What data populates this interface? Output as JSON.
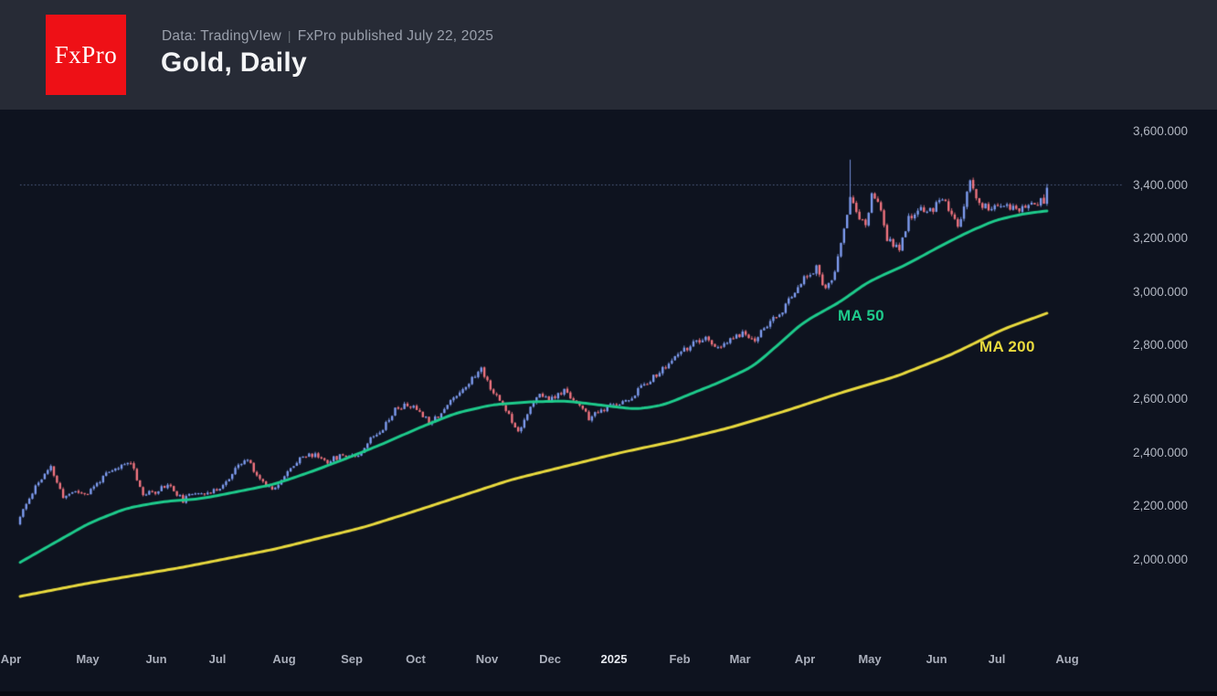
{
  "header": {
    "logo_text": "FxPro",
    "meta_source": "Data: TradingVIew",
    "meta_separator": "|",
    "meta_published": "FxPro published July 22, 2025",
    "title": "Gold, Daily"
  },
  "chart_data": {
    "type": "candlestick",
    "instrument": "Gold",
    "timeframe": "Daily",
    "background": "#0e131f",
    "grid": "off",
    "legend_position": "none",
    "y_axis": {
      "side": "right",
      "range": [
        1900,
        3680
      ],
      "ticks": [
        {
          "label": "3,600.000",
          "value": 3600
        },
        {
          "label": "3,400.000",
          "value": 3400
        },
        {
          "label": "3,200.000",
          "value": 3200
        },
        {
          "label": "3,000.000",
          "value": 3000
        },
        {
          "label": "2,800.000",
          "value": 2800
        },
        {
          "label": "2,600.000",
          "value": 2600
        },
        {
          "label": "2,400.000",
          "value": 2400
        },
        {
          "label": "2,200.000",
          "value": 2200
        },
        {
          "label": "2,000.000",
          "value": 2000
        }
      ]
    },
    "x_axis": {
      "ticks": [
        {
          "label": "Apr",
          "emphasis": false
        },
        {
          "label": "May",
          "emphasis": false
        },
        {
          "label": "Jun",
          "emphasis": false
        },
        {
          "label": "Jul",
          "emphasis": false
        },
        {
          "label": "Aug",
          "emphasis": false
        },
        {
          "label": "Sep",
          "emphasis": false
        },
        {
          "label": "Oct",
          "emphasis": false
        },
        {
          "label": "Nov",
          "emphasis": false
        },
        {
          "label": "Dec",
          "emphasis": false
        },
        {
          "label": "2025",
          "emphasis": true
        },
        {
          "label": "Feb",
          "emphasis": false
        },
        {
          "label": "Mar",
          "emphasis": false
        },
        {
          "label": "Apr",
          "emphasis": false
        },
        {
          "label": "May",
          "emphasis": false
        },
        {
          "label": "Jun",
          "emphasis": false
        },
        {
          "label": "Jul",
          "emphasis": false
        },
        {
          "label": "Aug",
          "emphasis": false
        }
      ]
    },
    "level_line": {
      "value": 3402,
      "style": "dotted",
      "color": "#55648a"
    },
    "candle_colors": {
      "up": "#7e9cf0",
      "down": "#f1747f"
    },
    "series": {
      "price_path": {
        "name": "Gold daily close path (day-index, price)",
        "points": [
          [
            0,
            2160
          ],
          [
            5,
            2276
          ],
          [
            10,
            2344
          ],
          [
            14,
            2232
          ],
          [
            17,
            2255
          ],
          [
            22,
            2248
          ],
          [
            27,
            2310
          ],
          [
            32,
            2344
          ],
          [
            36,
            2368
          ],
          [
            40,
            2242
          ],
          [
            44,
            2255
          ],
          [
            48,
            2283
          ],
          [
            53,
            2221
          ],
          [
            57,
            2255
          ],
          [
            62,
            2248
          ],
          [
            67,
            2289
          ],
          [
            71,
            2351
          ],
          [
            74,
            2375
          ],
          [
            78,
            2300
          ],
          [
            82,
            2266
          ],
          [
            86,
            2310
          ],
          [
            91,
            2385
          ],
          [
            96,
            2392
          ],
          [
            100,
            2368
          ],
          [
            105,
            2392
          ],
          [
            110,
            2392
          ],
          [
            114,
            2453
          ],
          [
            118,
            2494
          ],
          [
            122,
            2562
          ],
          [
            126,
            2579
          ],
          [
            130,
            2556
          ],
          [
            133,
            2515
          ],
          [
            137,
            2549
          ],
          [
            141,
            2607
          ],
          [
            145,
            2651
          ],
          [
            150,
            2713
          ],
          [
            154,
            2624
          ],
          [
            158,
            2562
          ],
          [
            162,
            2480
          ],
          [
            165,
            2549
          ],
          [
            169,
            2617
          ],
          [
            173,
            2600
          ],
          [
            177,
            2630
          ],
          [
            181,
            2590
          ],
          [
            185,
            2528
          ],
          [
            189,
            2556
          ],
          [
            193,
            2580
          ],
          [
            198,
            2597
          ],
          [
            203,
            2658
          ],
          [
            208,
            2699
          ],
          [
            213,
            2754
          ],
          [
            218,
            2802
          ],
          [
            223,
            2822
          ],
          [
            228,
            2788
          ],
          [
            231,
            2822
          ],
          [
            235,
            2846
          ],
          [
            239,
            2822
          ],
          [
            243,
            2880
          ],
          [
            248,
            2924
          ],
          [
            251,
            2992
          ],
          [
            255,
            3050
          ],
          [
            259,
            3091
          ],
          [
            262,
            3006
          ],
          [
            265,
            3067
          ],
          [
            268,
            3245
          ],
          [
            270,
            3358
          ],
          [
            272,
            3300
          ],
          [
            275,
            3238
          ],
          [
            277,
            3370
          ],
          [
            279,
            3340
          ],
          [
            282,
            3197
          ],
          [
            286,
            3163
          ],
          [
            289,
            3272
          ],
          [
            293,
            3306
          ],
          [
            297,
            3313
          ],
          [
            300,
            3358
          ],
          [
            303,
            3290
          ],
          [
            305,
            3235
          ],
          [
            308,
            3380
          ],
          [
            309,
            3408
          ],
          [
            312,
            3330
          ],
          [
            316,
            3310
          ],
          [
            320,
            3330
          ],
          [
            324,
            3305
          ],
          [
            328,
            3330
          ],
          [
            331,
            3315
          ],
          [
            334,
            3388
          ]
        ]
      },
      "ma50": {
        "label": "MA 50",
        "color": "#1ecb8c",
        "points": [
          [
            0,
            1990
          ],
          [
            11,
            2062
          ],
          [
            23,
            2140
          ],
          [
            35,
            2194
          ],
          [
            47,
            2218
          ],
          [
            59,
            2228
          ],
          [
            71,
            2255
          ],
          [
            83,
            2283
          ],
          [
            95,
            2330
          ],
          [
            106,
            2378
          ],
          [
            118,
            2433
          ],
          [
            130,
            2494
          ],
          [
            142,
            2549
          ],
          [
            154,
            2580
          ],
          [
            166,
            2590
          ],
          [
            178,
            2593
          ],
          [
            190,
            2576
          ],
          [
            201,
            2562
          ],
          [
            210,
            2580
          ],
          [
            219,
            2624
          ],
          [
            228,
            2665
          ],
          [
            239,
            2726
          ],
          [
            255,
            2890
          ],
          [
            267,
            2965
          ],
          [
            276,
            3040
          ],
          [
            288,
            3101
          ],
          [
            300,
            3176
          ],
          [
            309,
            3228
          ],
          [
            318,
            3272
          ],
          [
            328,
            3296
          ],
          [
            334,
            3303
          ]
        ]
      },
      "ma200": {
        "label": "MA 200",
        "color": "#e9da3e",
        "points": [
          [
            0,
            1863
          ],
          [
            23,
            1914
          ],
          [
            53,
            1972
          ],
          [
            83,
            2040
          ],
          [
            112,
            2122
          ],
          [
            128,
            2180
          ],
          [
            160,
            2300
          ],
          [
            178,
            2351
          ],
          [
            196,
            2402
          ],
          [
            213,
            2443
          ],
          [
            231,
            2494
          ],
          [
            249,
            2556
          ],
          [
            267,
            2624
          ],
          [
            285,
            2685
          ],
          [
            303,
            2767
          ],
          [
            320,
            2863
          ],
          [
            334,
            2921
          ]
        ]
      }
    },
    "key_candles": {
      "april_spike": {
        "day": 270,
        "high": 3495
      },
      "last": {
        "day": 334,
        "open": 3330,
        "close": 3390,
        "high": 3404,
        "low": 3322
      }
    }
  }
}
